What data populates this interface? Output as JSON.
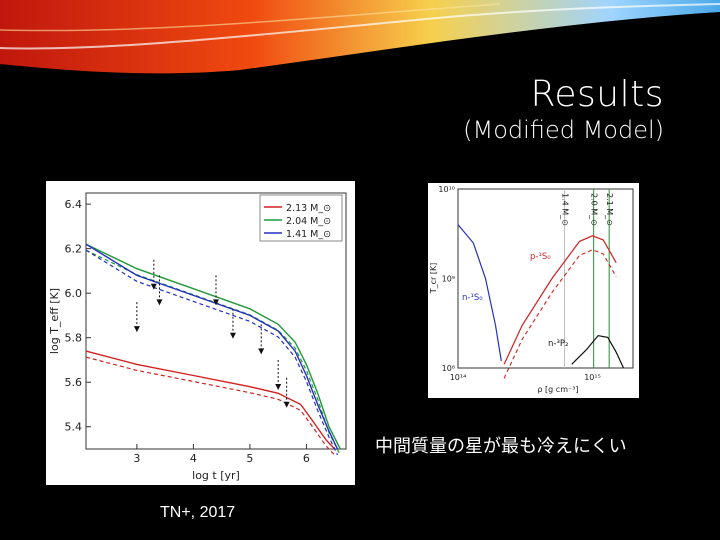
{
  "slide": {
    "title": "Results",
    "subtitle": "(Modified Model)",
    "caption": "中間質量の星が最も冷えにくい",
    "credit": "TN+, 2017"
  },
  "chart_data": [
    {
      "type": "line",
      "xlabel": "log t [yr]",
      "ylabel": "log T_eff [K]",
      "xlim": [
        2.1,
        6.7
      ],
      "ylim": [
        5.3,
        6.45
      ],
      "xticks": [
        "3",
        "4",
        "5",
        "6"
      ],
      "yticks": [
        "5.4",
        "5.6",
        "5.8",
        "6.0",
        "6.2",
        "6.4"
      ],
      "legend_position": "top-right",
      "series": [
        {
          "name": "2.13 M_⊙",
          "color": "#d42020",
          "x": [
            2.1,
            3.0,
            4.0,
            5.0,
            5.5,
            5.9,
            6.1,
            6.35,
            6.5
          ],
          "y": [
            5.74,
            5.68,
            5.63,
            5.58,
            5.55,
            5.5,
            5.43,
            5.34,
            5.3
          ]
        },
        {
          "name": "2.04 M_⊙",
          "color": "#1f9a3a",
          "x": [
            2.1,
            3.0,
            4.0,
            5.0,
            5.5,
            5.8,
            6.0,
            6.2,
            6.4,
            6.6
          ],
          "y": [
            6.22,
            6.11,
            6.02,
            5.93,
            5.86,
            5.78,
            5.68,
            5.55,
            5.4,
            5.3
          ]
        },
        {
          "name": "1.41 M_⊙",
          "color": "#2430c0",
          "x": [
            2.1,
            3.0,
            4.0,
            5.0,
            5.5,
            5.8,
            6.0,
            6.2,
            6.4,
            6.55
          ],
          "y": [
            6.22,
            6.08,
            5.99,
            5.9,
            5.83,
            5.74,
            5.63,
            5.5,
            5.38,
            5.3
          ]
        }
      ]
    },
    {
      "type": "line",
      "xlabel": "ρ [g cm⁻³]",
      "ylabel": "T_cr [K]",
      "xscale": "log",
      "yscale": "log",
      "xlim": [
        100000000000000.0,
        2000000000000000.0
      ],
      "ylim": [
        100000000.0,
        10000000000.0
      ],
      "xticks": [
        "10¹⁴",
        "10¹⁵"
      ],
      "yticks": [
        "10⁸",
        "10⁹",
        "10¹⁰"
      ],
      "mass_markers": [
        "1.4 M_⊙",
        "2.0 M_⊙",
        "2.1 M_⊙"
      ],
      "curve_labels": [
        "p-¹S₀",
        "n-¹S₀",
        "n-³P₂"
      ],
      "series": [
        {
          "name": "p-¹S₀",
          "color": "#d42020",
          "x": [
            220000000000000.0,
            300000000000000.0,
            500000000000000.0,
            800000000000000.0,
            1000000000000000.0,
            1200000000000000.0,
            1500000000000000.0
          ],
          "y": [
            110000000.0,
            300000000.0,
            1000000000.0,
            2600000000.0,
            3000000000.0,
            2700000000.0,
            1500000000.0
          ]
        },
        {
          "name": "n-¹S₀",
          "color": "#2430c0",
          "x": [
            100000000000000.0,
            130000000000000.0,
            160000000000000.0,
            190000000000000.0,
            210000000000000.0
          ],
          "y": [
            4000000000.0,
            2500000000.0,
            1000000000.0,
            300000000.0,
            120000000.0
          ]
        },
        {
          "name": "n-³P₂",
          "color": "#111111",
          "x": [
            700000000000000.0,
            900000000000000.0,
            1100000000000000.0,
            1300000000000000.0,
            1500000000000000.0,
            1700000000000000.0
          ],
          "y": [
            110000000.0,
            160000000.0,
            230000000.0,
            220000000.0,
            150000000.0,
            100000000.0
          ]
        }
      ]
    }
  ]
}
